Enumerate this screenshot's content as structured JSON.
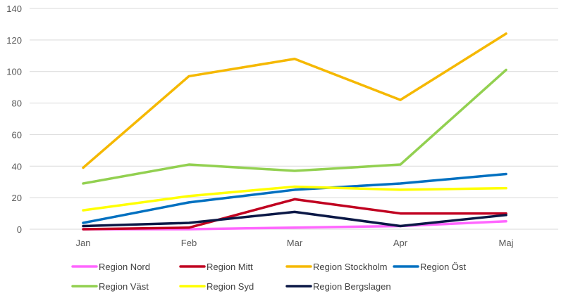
{
  "chart_data": {
    "type": "line",
    "title": "",
    "xlabel": "",
    "ylabel": "",
    "categories": [
      "Jan",
      "Feb",
      "Mar",
      "Apr",
      "Maj"
    ],
    "ylim": [
      0,
      140
    ],
    "yticks": [
      0,
      20,
      40,
      60,
      80,
      100,
      120,
      140
    ],
    "grid": true,
    "legend_position": "bottom",
    "series": [
      {
        "name": "Region Nord",
        "color": "#ff66ff",
        "values": [
          0,
          0,
          1,
          2,
          5
        ]
      },
      {
        "name": "Region Mitt",
        "color": "#c00020",
        "values": [
          0,
          1,
          19,
          10,
          10
        ]
      },
      {
        "name": "Region Stockholm",
        "color": "#f5b800",
        "values": [
          39,
          97,
          108,
          82,
          124
        ]
      },
      {
        "name": "Region Öst",
        "color": "#0070c0",
        "values": [
          4,
          17,
          25,
          29,
          35
        ]
      },
      {
        "name": "Region Väst",
        "color": "#92d050",
        "values": [
          29,
          41,
          37,
          41,
          101
        ]
      },
      {
        "name": "Region Syd",
        "color": "#ffff00",
        "values": [
          12,
          21,
          27,
          25,
          26
        ]
      },
      {
        "name": "Region Bergslagen",
        "color": "#0b1846",
        "values": [
          2,
          4,
          11,
          2,
          9
        ]
      }
    ]
  }
}
